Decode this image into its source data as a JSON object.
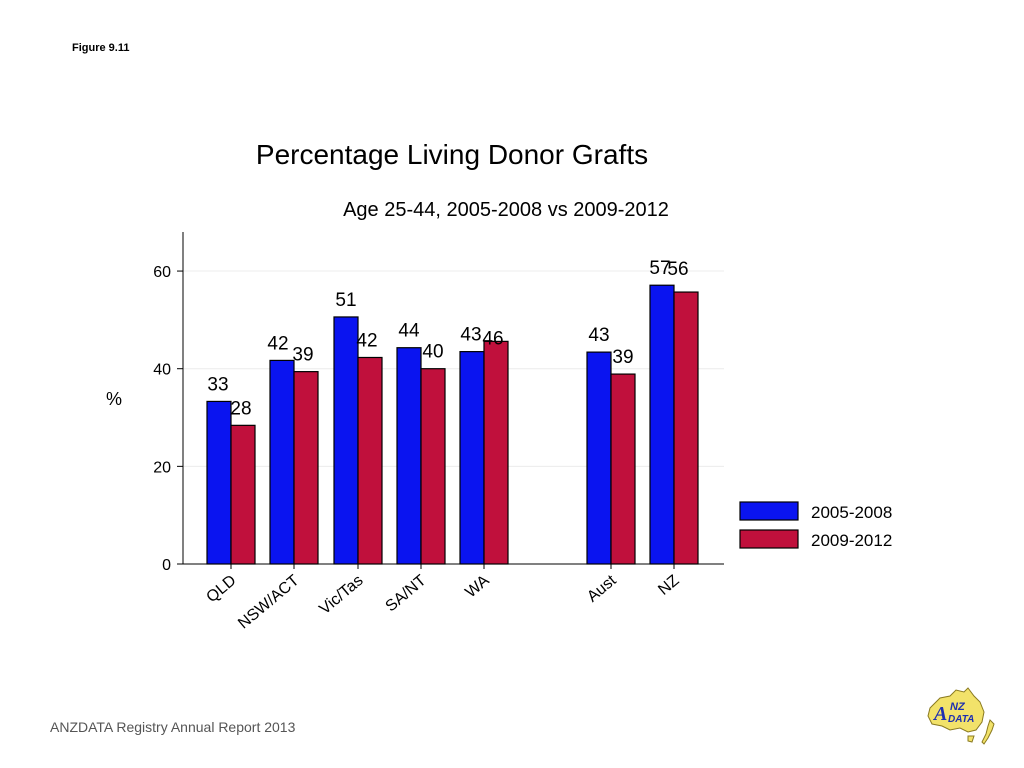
{
  "figure_label": "Figure 9.11",
  "footer_text": "ANZDATA Registry Annual Report 2013",
  "logo_text": {
    "a": "A",
    "nz": "NZ",
    "data": "DATA"
  },
  "colors": {
    "series1": "#0a14f0",
    "series2": "#c0103c",
    "axis": "#000000",
    "grid": "#ececec",
    "logo_yellow": "#f2e26a",
    "logo_blue": "#1d2fb0"
  },
  "chart_data": {
    "type": "bar",
    "title": "Percentage Living Donor Grafts",
    "subtitle": "Age 25-44, 2005-2008 vs 2009-2012",
    "xlabel": "",
    "ylabel": "%",
    "ylim": [
      0,
      68
    ],
    "yticks": [
      0,
      20,
      40,
      60
    ],
    "categories": [
      "QLD",
      "NSW/ACT",
      "Vic/Tas",
      "SA/NT",
      "WA",
      "Aust",
      "NZ"
    ],
    "series": [
      {
        "name": "2005-2008",
        "values": [
          33.3,
          41.7,
          50.6,
          44.3,
          43.5,
          43.4,
          57.1
        ],
        "labels": [
          "33",
          "42",
          "51",
          "44",
          "43",
          "43",
          "57"
        ]
      },
      {
        "name": "2009-2012",
        "values": [
          28.4,
          39.4,
          42.3,
          40.0,
          45.6,
          38.9,
          55.7
        ],
        "labels": [
          "28",
          "39",
          "42",
          "40",
          "46",
          "39",
          "56"
        ]
      }
    ],
    "grid": true,
    "legend_position": "right"
  }
}
